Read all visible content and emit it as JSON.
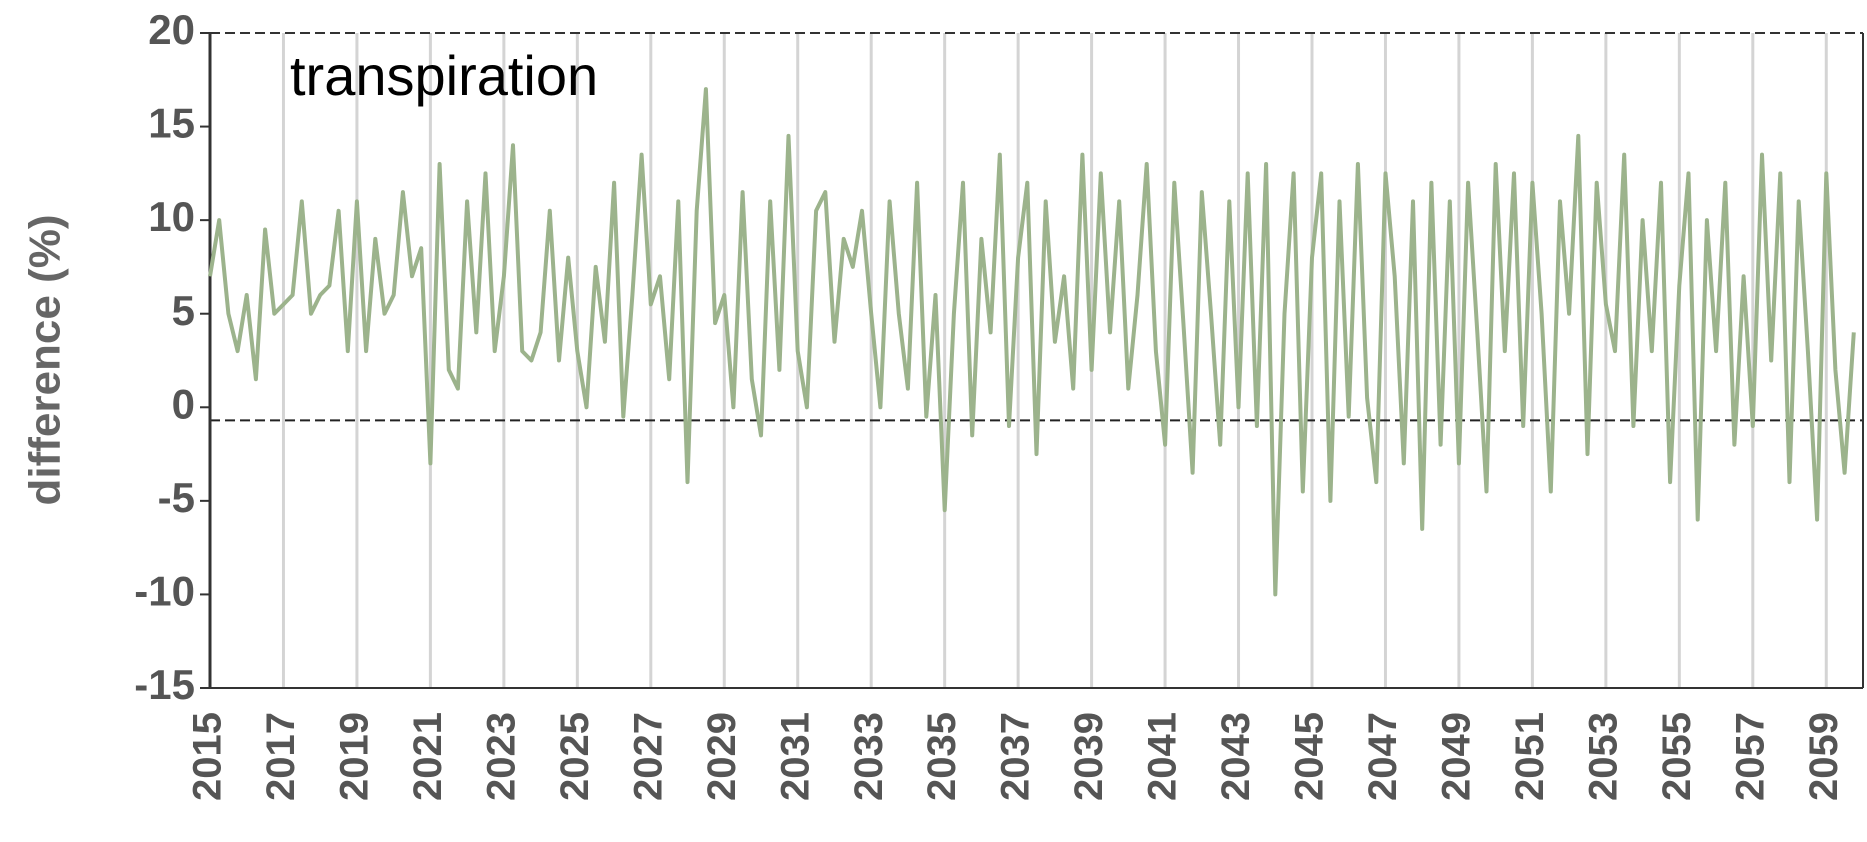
{
  "chart_data": {
    "type": "line",
    "annotation": "transpiration",
    "y_label": "difference (%)",
    "x": [
      2015,
      2015.25,
      2015.5,
      2015.75,
      2016,
      2016.25,
      2016.5,
      2016.75,
      2017,
      2017.25,
      2017.5,
      2017.75,
      2018,
      2018.25,
      2018.5,
      2018.75,
      2019,
      2019.25,
      2019.5,
      2019.75,
      2020,
      2020.25,
      2020.5,
      2020.75,
      2021,
      2021.25,
      2021.5,
      2021.75,
      2022,
      2022.25,
      2022.5,
      2022.75,
      2023,
      2023.25,
      2023.5,
      2023.75,
      2024,
      2024.25,
      2024.5,
      2024.75,
      2025,
      2025.25,
      2025.5,
      2025.75,
      2026,
      2026.25,
      2026.5,
      2026.75,
      2027,
      2027.25,
      2027.5,
      2027.75,
      2028,
      2028.25,
      2028.5,
      2028.75,
      2029,
      2029.25,
      2029.5,
      2029.75,
      2030,
      2030.25,
      2030.5,
      2030.75,
      2031,
      2031.25,
      2031.5,
      2031.75,
      2032,
      2032.25,
      2032.5,
      2032.75,
      2033,
      2033.25,
      2033.5,
      2033.75,
      2034,
      2034.25,
      2034.5,
      2034.75,
      2035,
      2035.25,
      2035.5,
      2035.75,
      2036,
      2036.25,
      2036.5,
      2036.75,
      2037,
      2037.25,
      2037.5,
      2037.75,
      2038,
      2038.25,
      2038.5,
      2038.75,
      2039,
      2039.25,
      2039.5,
      2039.75,
      2040,
      2040.25,
      2040.5,
      2040.75,
      2041,
      2041.25,
      2041.5,
      2041.75,
      2042,
      2042.25,
      2042.5,
      2042.75,
      2043,
      2043.25,
      2043.5,
      2043.75,
      2044,
      2044.25,
      2044.5,
      2044.75,
      2045,
      2045.25,
      2045.5,
      2045.75,
      2046,
      2046.25,
      2046.5,
      2046.75,
      2047,
      2047.25,
      2047.5,
      2047.75,
      2048,
      2048.25,
      2048.5,
      2048.75,
      2049,
      2049.25,
      2049.5,
      2049.75,
      2050,
      2050.25,
      2050.5,
      2050.75,
      2051,
      2051.25,
      2051.5,
      2051.75,
      2052,
      2052.25,
      2052.5,
      2052.75,
      2053,
      2053.25,
      2053.5,
      2053.75,
      2054,
      2054.25,
      2054.5,
      2054.75,
      2055,
      2055.25,
      2055.5,
      2055.75,
      2056,
      2056.25,
      2056.5,
      2056.75,
      2057,
      2057.25,
      2057.5,
      2057.75,
      2058,
      2058.25,
      2058.5,
      2058.75,
      2059,
      2059.25,
      2059.5,
      2059.75
    ],
    "series": [
      {
        "color": "#9cb38c",
        "values": [
          7,
          10,
          5,
          3,
          6,
          1.5,
          9.5,
          5,
          5.5,
          6,
          11,
          5,
          6,
          6.5,
          10.5,
          3,
          11,
          3,
          9,
          5,
          6,
          11.5,
          7,
          8.5,
          -3,
          13,
          2,
          1,
          11,
          4,
          12.5,
          3,
          7,
          14,
          3,
          2.5,
          4,
          10.5,
          2.5,
          8,
          3,
          0,
          7.5,
          3.5,
          12,
          -0.5,
          6,
          13.5,
          5.5,
          7,
          1.5,
          11,
          -4,
          10.5,
          17,
          4.5,
          6,
          0,
          11.5,
          1.5,
          -1.5,
          11,
          2,
          14.5,
          3,
          0,
          10.5,
          11.5,
          3.5,
          9,
          7.5,
          10.5,
          5,
          0,
          11,
          5,
          1,
          12,
          -0.5,
          6,
          -5.5,
          5,
          12,
          -1.5,
          9,
          4,
          13.5,
          -1,
          8,
          12,
          -2.5,
          11,
          3.5,
          7,
          1,
          13.5,
          2,
          12.5,
          4,
          11,
          1,
          6,
          13,
          3,
          -2,
          12,
          4.5,
          -3.5,
          11.5,
          5,
          -2,
          11,
          0,
          12.5,
          -1,
          13,
          -10,
          5,
          12.5,
          -4.5,
          8,
          12.5,
          -5,
          11,
          -0.5,
          13,
          0.5,
          -4,
          12.5,
          7,
          -3,
          11,
          -6.5,
          12,
          -2,
          11,
          -3,
          12,
          4,
          -4.5,
          13,
          3,
          12.5,
          -1,
          12,
          5,
          -4.5,
          11,
          5,
          14.5,
          -2.5,
          12,
          5.5,
          3,
          13.5,
          -1,
          10,
          3,
          12,
          -4,
          6.5,
          12.5,
          -6,
          10,
          3,
          12,
          -2,
          7,
          -1,
          13.5,
          2.5,
          12.5,
          -4,
          11,
          3,
          -6,
          12.5,
          2,
          -3.5,
          4
        ]
      }
    ],
    "xlim": [
      2015,
      2060
    ],
    "xticks": [
      2015,
      2017,
      2019,
      2021,
      2023,
      2025,
      2027,
      2029,
      2031,
      2033,
      2035,
      2037,
      2039,
      2041,
      2043,
      2045,
      2047,
      2049,
      2051,
      2053,
      2055,
      2057,
      2059
    ],
    "ylim": [
      -15,
      20
    ],
    "yticks": [
      -15,
      -10,
      -5,
      0,
      5,
      10,
      15,
      20
    ],
    "reference_line": -0.7,
    "grid": true
  }
}
